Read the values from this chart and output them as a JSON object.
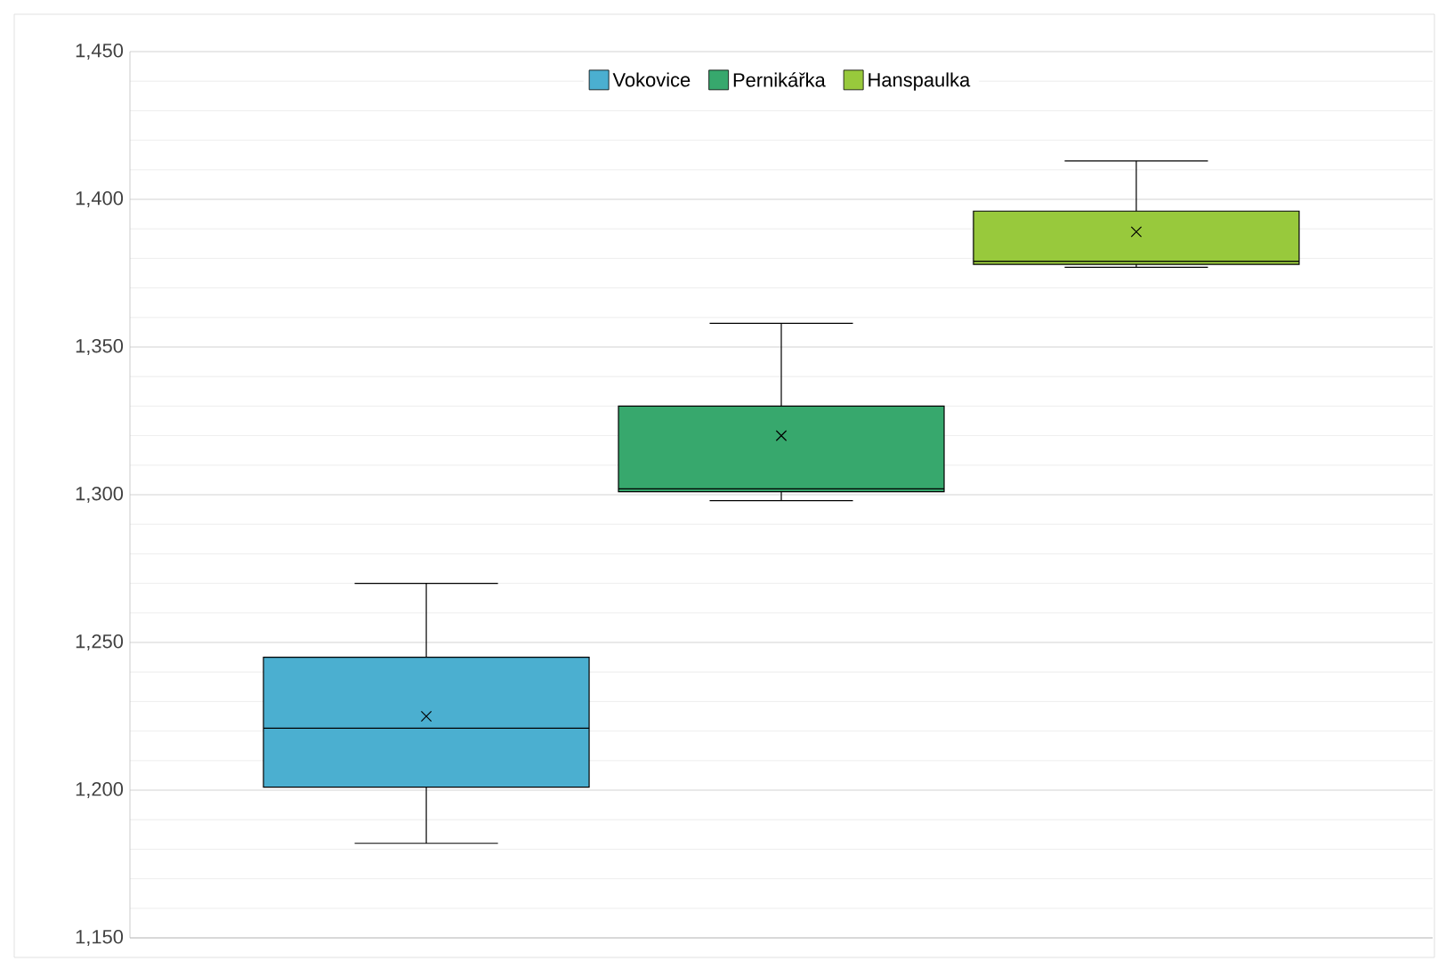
{
  "chart_data": {
    "type": "box",
    "categories": [
      null
    ],
    "series": [
      {
        "name": "Vokovice",
        "color": "#4bafd0",
        "boxes": [
          {
            "low": 1182,
            "q1": 1201,
            "median": 1221,
            "q3": 1245,
            "high": 1270,
            "mean": 1225
          }
        ]
      },
      {
        "name": "Pernikářka",
        "color": "#37a86d",
        "boxes": [
          {
            "low": 1298,
            "q1": 1301,
            "median": 1302,
            "q3": 1330,
            "high": 1358,
            "mean": 1320
          }
        ]
      },
      {
        "name": "Hanspaulka",
        "color": "#98c93c",
        "boxes": [
          {
            "low": 1377,
            "q1": 1378,
            "median": 1379,
            "q3": 1396,
            "high": 1413,
            "mean": 1389
          }
        ]
      }
    ],
    "ylim": [
      1150,
      1450
    ],
    "yticks": [
      {
        "value": 1150,
        "label": "1,150"
      },
      {
        "value": 1160,
        "label": null
      },
      {
        "value": 1170,
        "label": null
      },
      {
        "value": 1180,
        "label": null
      },
      {
        "value": 1190,
        "label": null
      },
      {
        "value": 1200,
        "label": "1,200"
      },
      {
        "value": 1210,
        "label": null
      },
      {
        "value": 1220,
        "label": null
      },
      {
        "value": 1230,
        "label": null
      },
      {
        "value": 1240,
        "label": null
      },
      {
        "value": 1250,
        "label": "1,250"
      },
      {
        "value": 1260,
        "label": null
      },
      {
        "value": 1270,
        "label": null
      },
      {
        "value": 1280,
        "label": null
      },
      {
        "value": 1290,
        "label": null
      },
      {
        "value": 1300,
        "label": "1,300"
      },
      {
        "value": 1310,
        "label": null
      },
      {
        "value": 1320,
        "label": null
      },
      {
        "value": 1330,
        "label": null
      },
      {
        "value": 1340,
        "label": null
      },
      {
        "value": 1350,
        "label": "1,350"
      },
      {
        "value": 1360,
        "label": null
      },
      {
        "value": 1370,
        "label": null
      },
      {
        "value": 1380,
        "label": null
      },
      {
        "value": 1390,
        "label": null
      },
      {
        "value": 1400,
        "label": "1,400"
      },
      {
        "value": 1410,
        "label": null
      },
      {
        "value": 1420,
        "label": null
      },
      {
        "value": 1430,
        "label": null
      },
      {
        "value": 1440,
        "label": null
      },
      {
        "value": 1450,
        "label": "1,450"
      }
    ],
    "grid": true,
    "legend": "top"
  }
}
